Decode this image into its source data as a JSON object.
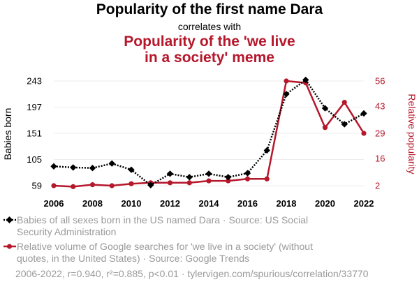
{
  "titles": {
    "main": "Popularity of the first name Dara",
    "connector": "correlates with",
    "secondary_line1": "Popularity of the 'we live",
    "secondary_line2": "in a society' meme"
  },
  "colors": {
    "series1": "#000000",
    "series2": "#b5172b",
    "grid": "#eeeeee",
    "legend_text": "#9a9a9a"
  },
  "chart_data": {
    "type": "line",
    "x": [
      2006,
      2007,
      2008,
      2009,
      2010,
      2011,
      2012,
      2013,
      2014,
      2015,
      2016,
      2017,
      2018,
      2019,
      2020,
      2021,
      2022
    ],
    "x_ticks": [
      "2006",
      "2008",
      "2010",
      "2012",
      "2014",
      "2016",
      "2018",
      "2020",
      "2022"
    ],
    "grid": true,
    "left_axis": {
      "label": "Babies born",
      "ticks": [
        "243",
        "197",
        "151",
        "105",
        "59"
      ],
      "range": [
        59,
        243
      ]
    },
    "right_axis": {
      "label": "Relative popularity",
      "ticks": [
        "56",
        "43",
        "29",
        "16",
        "2"
      ],
      "range": [
        2,
        56
      ]
    },
    "series": [
      {
        "name": "Babies of all sexes born in the US named Dara · Source: US Social Security Administration",
        "axis": "left",
        "style": "dotted",
        "marker": "diamond",
        "color": "#000000",
        "values": [
          93,
          91,
          90,
          98,
          87,
          60,
          80,
          74,
          80,
          74,
          81,
          121,
          220,
          245,
          195,
          167,
          186
        ]
      },
      {
        "name": "Relative volume of Google searches for 'we live in a society' (without quotes, in the United States) · Source: Google Trends",
        "axis": "right",
        "style": "solid",
        "marker": "circle",
        "color": "#b5172b",
        "values": [
          2,
          1.5,
          2.5,
          2,
          3,
          3.5,
          3.5,
          3.5,
          4.5,
          4.5,
          5.5,
          5.5,
          56,
          55,
          32,
          45,
          29
        ]
      }
    ]
  },
  "legend": {
    "item1": "Babies of all sexes born in the US named Dara · Source: US Social Security Administration",
    "item2": "Relative volume of Google searches for 'we live in a society' (without quotes, in the United States) · Source: Google Trends"
  },
  "footer": "2006-2022, r=0.940, r²=0.885, p<0.01 · tylervigen.com/spurious/correlation/33770"
}
